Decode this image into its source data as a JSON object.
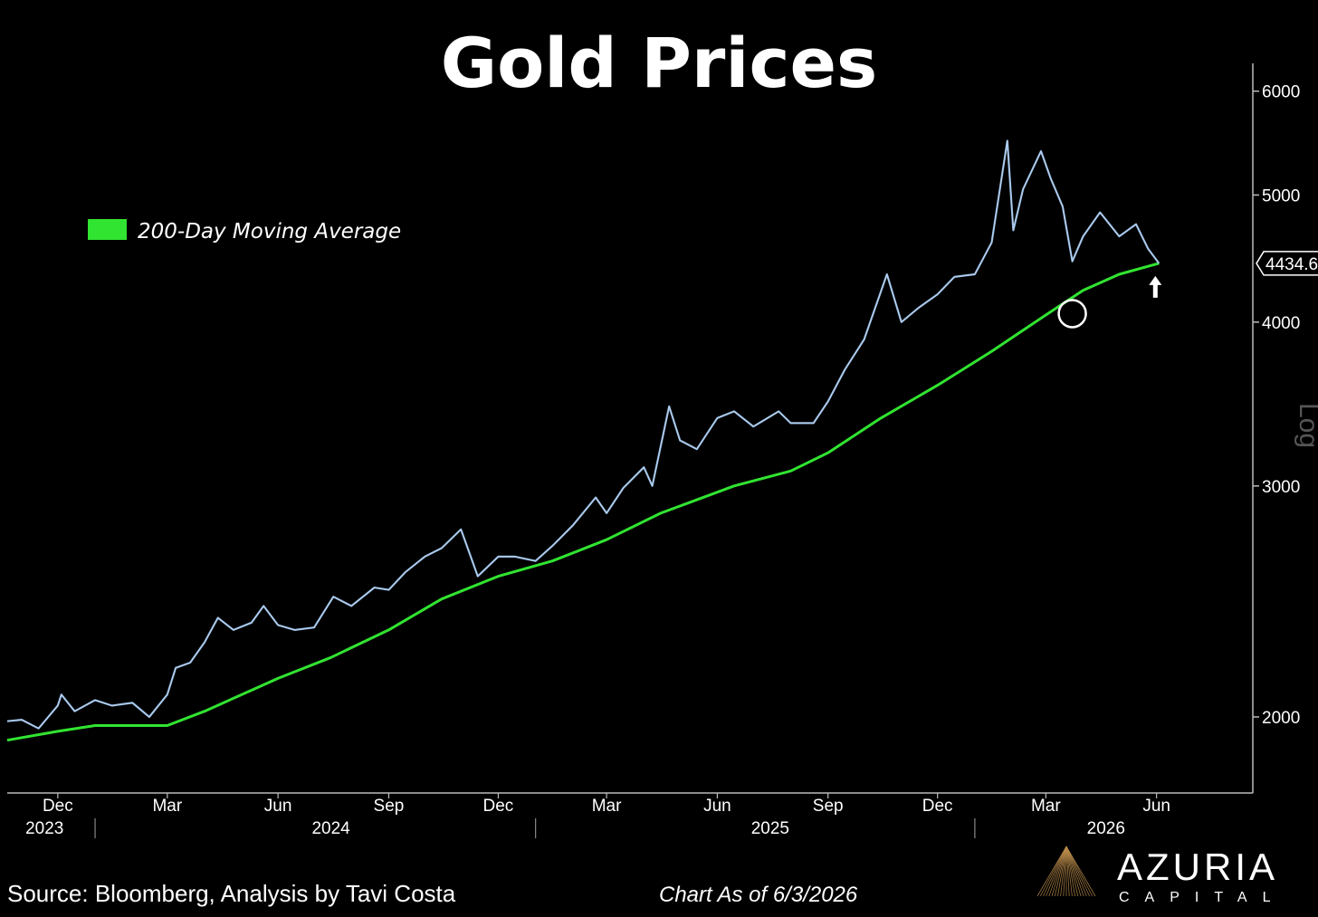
{
  "chart_data": {
    "type": "line",
    "title": "Gold Prices",
    "y_scale": "log",
    "y_scale_label": "Log",
    "ylim": [
      1750,
      6300
    ],
    "y_ticks": [
      2000,
      3000,
      4000,
      5000,
      6000
    ],
    "last_price_label": "4434.6",
    "x_range": [
      "2023-10-20",
      "2026-08-20"
    ],
    "x_month_ticks": [
      {
        "date": "2023-12-01",
        "label": "Dec"
      },
      {
        "date": "2024-03-01",
        "label": "Mar"
      },
      {
        "date": "2024-06-01",
        "label": "Jun"
      },
      {
        "date": "2024-09-01",
        "label": "Sep"
      },
      {
        "date": "2024-12-01",
        "label": "Dec"
      },
      {
        "date": "2025-03-01",
        "label": "Mar"
      },
      {
        "date": "2025-06-01",
        "label": "Jun"
      },
      {
        "date": "2025-09-01",
        "label": "Sep"
      },
      {
        "date": "2025-12-01",
        "label": "Dec"
      },
      {
        "date": "2026-03-01",
        "label": "Mar"
      },
      {
        "date": "2026-06-01",
        "label": "Jun"
      }
    ],
    "x_year_labels": [
      {
        "date": "2023-11-20",
        "label": "2023"
      },
      {
        "date": "2024-07-15",
        "label": "2024"
      },
      {
        "date": "2025-07-15",
        "label": "2025"
      },
      {
        "date": "2026-04-20",
        "label": "2026"
      }
    ],
    "x_year_separators": [
      "2024-01-01",
      "2025-01-01",
      "2026-01-01"
    ],
    "series": [
      {
        "name": "",
        "color": "#a8cdf5",
        "points": [
          [
            "2023-10-20",
            1985
          ],
          [
            "2023-11-01",
            1990
          ],
          [
            "2023-11-15",
            1960
          ],
          [
            "2023-12-01",
            2040
          ],
          [
            "2023-12-04",
            2080
          ],
          [
            "2023-12-15",
            2020
          ],
          [
            "2024-01-01",
            2060
          ],
          [
            "2024-01-15",
            2040
          ],
          [
            "2024-02-01",
            2050
          ],
          [
            "2024-02-15",
            2000
          ],
          [
            "2024-03-01",
            2080
          ],
          [
            "2024-03-08",
            2180
          ],
          [
            "2024-03-20",
            2200
          ],
          [
            "2024-04-01",
            2280
          ],
          [
            "2024-04-12",
            2380
          ],
          [
            "2024-04-25",
            2330
          ],
          [
            "2024-05-10",
            2360
          ],
          [
            "2024-05-20",
            2430
          ],
          [
            "2024-06-01",
            2350
          ],
          [
            "2024-06-15",
            2330
          ],
          [
            "2024-07-01",
            2340
          ],
          [
            "2024-07-17",
            2470
          ],
          [
            "2024-08-01",
            2430
          ],
          [
            "2024-08-20",
            2510
          ],
          [
            "2024-09-01",
            2500
          ],
          [
            "2024-09-15",
            2580
          ],
          [
            "2024-10-01",
            2650
          ],
          [
            "2024-10-15",
            2690
          ],
          [
            "2024-10-31",
            2780
          ],
          [
            "2024-11-14",
            2560
          ],
          [
            "2024-12-01",
            2650
          ],
          [
            "2024-12-15",
            2650
          ],
          [
            "2025-01-01",
            2630
          ],
          [
            "2025-01-15",
            2700
          ],
          [
            "2025-02-01",
            2800
          ],
          [
            "2025-02-20",
            2940
          ],
          [
            "2025-03-01",
            2860
          ],
          [
            "2025-03-15",
            2990
          ],
          [
            "2025-04-01",
            3100
          ],
          [
            "2025-04-08",
            3000
          ],
          [
            "2025-04-22",
            3450
          ],
          [
            "2025-05-01",
            3250
          ],
          [
            "2025-05-15",
            3200
          ],
          [
            "2025-06-01",
            3380
          ],
          [
            "2025-06-15",
            3420
          ],
          [
            "2025-07-01",
            3330
          ],
          [
            "2025-07-22",
            3420
          ],
          [
            "2025-08-01",
            3350
          ],
          [
            "2025-08-20",
            3350
          ],
          [
            "2025-09-01",
            3480
          ],
          [
            "2025-09-15",
            3680
          ],
          [
            "2025-10-01",
            3880
          ],
          [
            "2025-10-20",
            4350
          ],
          [
            "2025-11-01",
            4000
          ],
          [
            "2025-11-15",
            4100
          ],
          [
            "2025-12-01",
            4200
          ],
          [
            "2025-12-15",
            4330
          ],
          [
            "2026-01-01",
            4350
          ],
          [
            "2026-01-15",
            4600
          ],
          [
            "2026-01-28",
            5500
          ],
          [
            "2026-02-02",
            4700
          ],
          [
            "2026-02-10",
            5050
          ],
          [
            "2026-02-25",
            5400
          ],
          [
            "2026-03-05",
            5150
          ],
          [
            "2026-03-15",
            4900
          ],
          [
            "2026-03-23",
            4450
          ],
          [
            "2026-04-01",
            4650
          ],
          [
            "2026-04-15",
            4850
          ],
          [
            "2026-05-01",
            4650
          ],
          [
            "2026-05-15",
            4750
          ],
          [
            "2026-05-25",
            4550
          ],
          [
            "2026-06-03",
            4434.6
          ]
        ]
      },
      {
        "name": "200-Day Moving Average",
        "color": "#31e431",
        "points": [
          [
            "2023-10-20",
            1920
          ],
          [
            "2023-12-01",
            1950
          ],
          [
            "2024-01-01",
            1970
          ],
          [
            "2024-03-01",
            1970
          ],
          [
            "2024-04-01",
            2020
          ],
          [
            "2024-06-01",
            2140
          ],
          [
            "2024-07-15",
            2220
          ],
          [
            "2024-09-01",
            2330
          ],
          [
            "2024-10-15",
            2460
          ],
          [
            "2024-12-01",
            2560
          ],
          [
            "2025-01-15",
            2630
          ],
          [
            "2025-03-01",
            2730
          ],
          [
            "2025-04-15",
            2860
          ],
          [
            "2025-06-15",
            3000
          ],
          [
            "2025-08-01",
            3080
          ],
          [
            "2025-09-01",
            3180
          ],
          [
            "2025-10-15",
            3380
          ],
          [
            "2025-12-01",
            3580
          ],
          [
            "2026-01-15",
            3800
          ],
          [
            "2026-03-01",
            4050
          ],
          [
            "2026-04-01",
            4230
          ],
          [
            "2026-05-01",
            4350
          ],
          [
            "2026-06-03",
            4434.6
          ]
        ]
      }
    ],
    "annotations": {
      "circle_date": "2026-03-23",
      "circle_value": 4060,
      "arrow_date": "2026-06-03",
      "arrow_value": 4434.6
    },
    "legend_placement": "top-left"
  },
  "footer": {
    "source": "Source: Bloomberg, Analysis by Tavi Costa",
    "chart_date": "Chart As of 6/3/2026"
  },
  "logo": {
    "name": "AZURIA",
    "sub": "CAPITAL"
  }
}
